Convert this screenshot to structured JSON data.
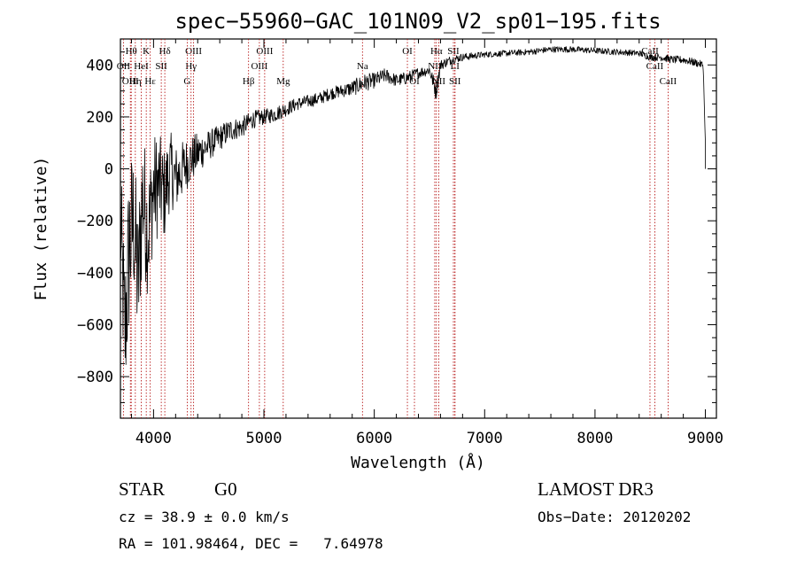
{
  "chart_data": {
    "type": "line",
    "title": "spec−55960−GAC_101N09_V2_sp01−195.fits",
    "xlabel": "Wavelength (Å)",
    "ylabel": "Flux (relative)",
    "xlim": [
      3700,
      9100
    ],
    "ylim": [
      -960,
      500
    ],
    "xticks": [
      4000,
      5000,
      6000,
      7000,
      8000,
      9000
    ],
    "xtick_labels": [
      "4000",
      "5000",
      "6000",
      "7000",
      "8000",
      "9000"
    ],
    "yticks": [
      400,
      200,
      0,
      -200,
      -400,
      -600,
      -800
    ],
    "ytick_labels": [
      "400",
      "200",
      "0",
      "−200",
      "−400",
      "−600",
      "−800"
    ],
    "series": [
      {
        "name": "flux",
        "x": [
          3700,
          3740,
          3780,
          3820,
          3860,
          3900,
          3950,
          4000,
          4050,
          4100,
          4150,
          4200,
          4300,
          4400,
          4500,
          4600,
          4700,
          4800,
          4900,
          5000,
          5100,
          5200,
          5300,
          5400,
          5500,
          5600,
          5700,
          5800,
          5900,
          6000,
          6100,
          6200,
          6300,
          6400,
          6500,
          6560,
          6600,
          6700,
          6800,
          7000,
          7200,
          7400,
          7600,
          7800,
          8000,
          8200,
          8400,
          8500,
          8600,
          8700,
          8800,
          8900,
          8980,
          9000
        ],
        "y": [
          -200,
          -650,
          -300,
          -200,
          -450,
          -100,
          -250,
          -80,
          -60,
          -100,
          0,
          -40,
          20,
          60,
          90,
          120,
          150,
          160,
          190,
          200,
          210,
          230,
          250,
          260,
          270,
          290,
          300,
          310,
          330,
          340,
          360,
          340,
          350,
          370,
          380,
          300,
          400,
          420,
          430,
          440,
          445,
          450,
          460,
          460,
          455,
          450,
          445,
          430,
          430,
          420,
          420,
          410,
          400,
          100
        ],
        "noise": [
          250,
          300,
          350,
          300,
          300,
          280,
          250,
          220,
          200,
          180,
          150,
          130,
          100,
          80,
          60,
          50,
          45,
          40,
          35,
          30,
          30,
          28,
          25,
          25,
          25,
          25,
          25,
          30,
          35,
          30,
          28,
          25,
          25,
          22,
          20,
          40,
          20,
          18,
          15,
          12,
          12,
          12,
          12,
          12,
          12,
          12,
          12,
          14,
          15,
          15,
          15,
          15,
          15,
          0
        ]
      }
    ],
    "lines": [
      {
        "label": "Hθ",
        "wave": 3798,
        "row": 1
      },
      {
        "label": "OII",
        "wave": 3727,
        "row": 2
      },
      {
        "label": "Hη",
        "wave": 3835,
        "row": 3
      },
      {
        "label": "OIII",
        "wave": 3790,
        "row": 3
      },
      {
        "label": "K",
        "wave": 3934,
        "row": 1
      },
      {
        "label": "HeI",
        "wave": 3889,
        "row": 2
      },
      {
        "label": "Hε",
        "wave": 3970,
        "row": 3
      },
      {
        "label": "SII",
        "wave": 4070,
        "row": 2
      },
      {
        "label": "Hδ",
        "wave": 4102,
        "row": 1
      },
      {
        "label": "OIII",
        "wave": 4363,
        "row": 1
      },
      {
        "label": "Hγ",
        "wave": 4340,
        "row": 2
      },
      {
        "label": "G",
        "wave": 4305,
        "row": 3
      },
      {
        "label": "Hβ",
        "wave": 4861,
        "row": 3
      },
      {
        "label": "OIII",
        "wave": 5007,
        "row": 1
      },
      {
        "label": "OIII",
        "wave": 4959,
        "row": 2
      },
      {
        "label": "Mg",
        "wave": 5175,
        "row": 3
      },
      {
        "label": "Na",
        "wave": 5893,
        "row": 2
      },
      {
        "label": "OI",
        "wave": 6300,
        "row": 1
      },
      {
        "label": "OI",
        "wave": 6364,
        "row": 3
      },
      {
        "label": "Hα",
        "wave": 6563,
        "row": 1
      },
      {
        "label": "NII",
        "wave": 6548,
        "row": 2
      },
      {
        "label": "NII",
        "wave": 6584,
        "row": 3
      },
      {
        "label": "SII",
        "wave": 6717,
        "row": 1
      },
      {
        "label": "LI",
        "wave": 6731,
        "row": 2
      },
      {
        "label": "SII",
        "wave": 6731,
        "row": 3
      },
      {
        "label": "CaII",
        "wave": 8498,
        "row": 1
      },
      {
        "label": "CaII",
        "wave": 8542,
        "row": 2
      },
      {
        "label": "CaII",
        "wave": 8662,
        "row": 3
      }
    ],
    "colors": {
      "spectrum": "#000000",
      "lines": "#b00000",
      "axes": "#000000"
    }
  },
  "info": {
    "object_class": "STAR",
    "subclass": "G0",
    "cz": "cz = 38.9 ± 0.0 km/s",
    "coords": "RA = 101.98464, DEC =   7.64978",
    "survey": "LAMOST DR3",
    "obs_date": "Obs−Date: 20120202"
  }
}
